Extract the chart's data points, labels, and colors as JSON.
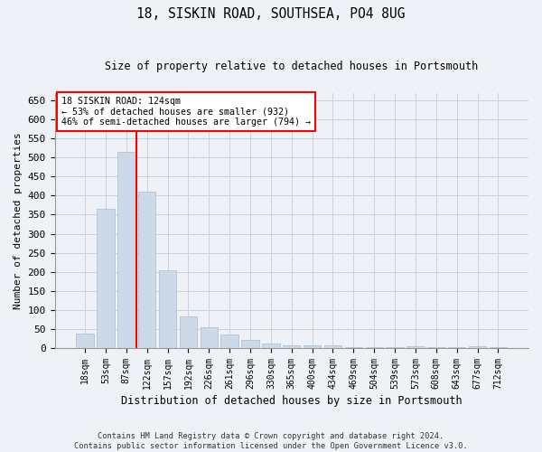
{
  "title": "18, SISKIN ROAD, SOUTHSEA, PO4 8UG",
  "subtitle": "Size of property relative to detached houses in Portsmouth",
  "xlabel": "Distribution of detached houses by size in Portsmouth",
  "ylabel": "Number of detached properties",
  "bar_color": "#ccd9e8",
  "bar_edge_color": "#aabcce",
  "grid_color": "#c8d4de",
  "categories": [
    "18sqm",
    "53sqm",
    "87sqm",
    "122sqm",
    "157sqm",
    "192sqm",
    "226sqm",
    "261sqm",
    "296sqm",
    "330sqm",
    "365sqm",
    "400sqm",
    "434sqm",
    "469sqm",
    "504sqm",
    "539sqm",
    "573sqm",
    "608sqm",
    "643sqm",
    "677sqm",
    "712sqm"
  ],
  "values": [
    38,
    365,
    515,
    410,
    205,
    84,
    55,
    35,
    22,
    12,
    8,
    7,
    8,
    2,
    2,
    2,
    5,
    2,
    2,
    5,
    2
  ],
  "legend_line1": "18 SISKIN ROAD: 124sqm",
  "legend_line2": "← 53% of detached houses are smaller (932)",
  "legend_line3": "46% of semi-detached houses are larger (794) →",
  "ylim": [
    0,
    670
  ],
  "yticks": [
    0,
    50,
    100,
    150,
    200,
    250,
    300,
    350,
    400,
    450,
    500,
    550,
    600,
    650
  ],
  "footer_line1": "Contains HM Land Registry data © Crown copyright and database right 2024.",
  "footer_line2": "Contains public sector information licensed under the Open Government Licence v3.0.",
  "bg_color": "#eef2f6",
  "plot_bg_color": "#eef2f6",
  "red_line_x": 2.5
}
